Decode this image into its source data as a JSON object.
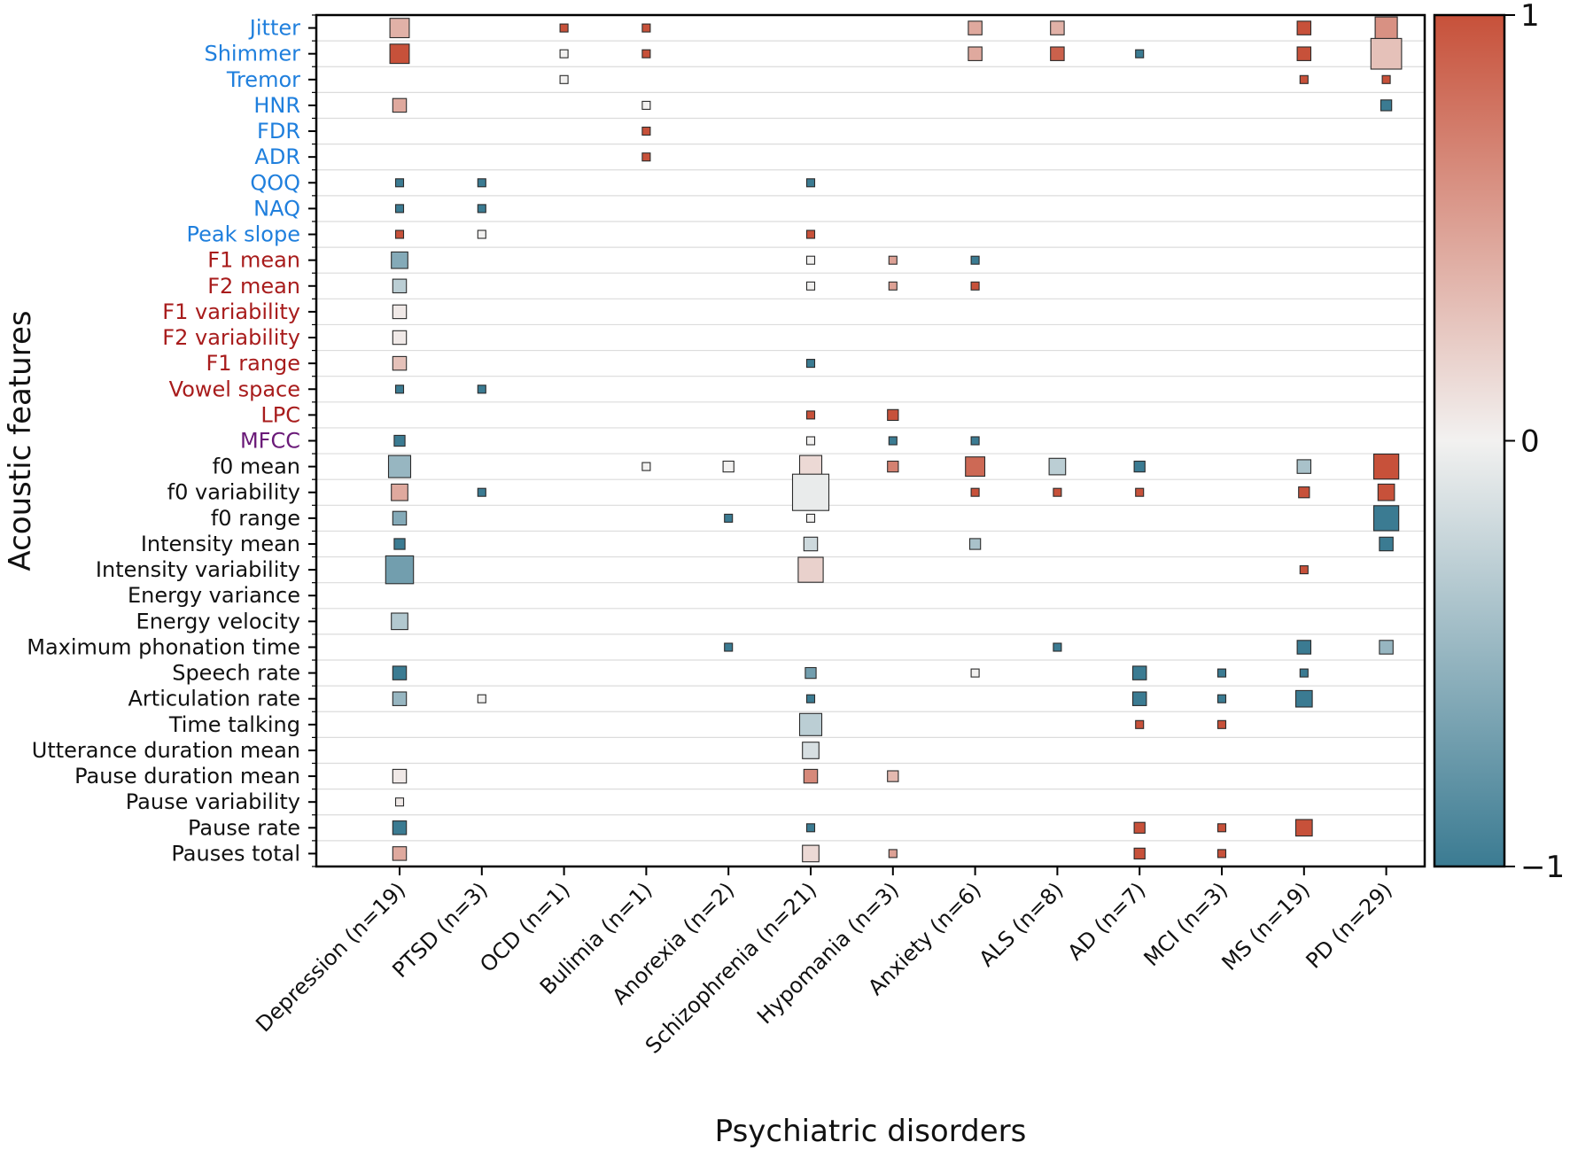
{
  "chart_data": {
    "type": "heatmap",
    "title": "",
    "xlabel": "Psychiatric disorders",
    "ylabel": "Acoustic features",
    "categories": [
      "Depression (n=19)",
      "PTSD (n=3)",
      "OCD (n=1)",
      "Bulimia (n=1)",
      "Anorexia (n=2)",
      "Schizophrenia (n=21)",
      "Hypomania (n=3)",
      "Anxiety (n=6)",
      "ALS (n=8)",
      "AD (n=7)",
      "MCI (n=3)",
      "MS (n=19)",
      "PD (n=29)"
    ],
    "features": [
      {
        "name": "Jitter",
        "group": "source"
      },
      {
        "name": "Shimmer",
        "group": "source"
      },
      {
        "name": "Tremor",
        "group": "source"
      },
      {
        "name": "HNR",
        "group": "source"
      },
      {
        "name": "FDR",
        "group": "source"
      },
      {
        "name": "ADR",
        "group": "source"
      },
      {
        "name": "QOQ",
        "group": "source"
      },
      {
        "name": "NAQ",
        "group": "source"
      },
      {
        "name": "Peak slope",
        "group": "source"
      },
      {
        "name": "F1 mean",
        "group": "filter"
      },
      {
        "name": "F2 mean",
        "group": "filter"
      },
      {
        "name": "F1 variability",
        "group": "filter"
      },
      {
        "name": "F2 variability",
        "group": "filter"
      },
      {
        "name": "F1 range",
        "group": "filter"
      },
      {
        "name": "Vowel space",
        "group": "filter"
      },
      {
        "name": "LPC",
        "group": "filter"
      },
      {
        "name": "MFCC",
        "group": "spectral"
      },
      {
        "name": "f0 mean",
        "group": "prosodic"
      },
      {
        "name": "f0 variability",
        "group": "prosodic"
      },
      {
        "name": "f0 range",
        "group": "prosodic"
      },
      {
        "name": "Intensity mean",
        "group": "prosodic"
      },
      {
        "name": "Intensity variability",
        "group": "prosodic"
      },
      {
        "name": "Energy variance",
        "group": "prosodic"
      },
      {
        "name": "Energy velocity",
        "group": "prosodic"
      },
      {
        "name": "Maximum phonation time",
        "group": "prosodic"
      },
      {
        "name": "Speech rate",
        "group": "prosodic"
      },
      {
        "name": "Articulation rate",
        "group": "prosodic"
      },
      {
        "name": "Time talking ",
        "group": "prosodic"
      },
      {
        "name": "Utterance duration mean",
        "group": "prosodic"
      },
      {
        "name": "Pause duration mean",
        "group": "prosodic"
      },
      {
        "name": "Pause variability",
        "group": "prosodic"
      },
      {
        "name": "Pause rate",
        "group": "prosodic"
      },
      {
        "name": "Pauses total",
        "group": "prosodic"
      }
    ],
    "group_colors": {
      "source": "#1f7fdd",
      "filter": "#a81c1c",
      "spectral": "#6a1a78",
      "prosodic": "#111111"
    },
    "cells": [
      {
        "f": 0,
        "c": 0,
        "value": 0.4,
        "count": 5
      },
      {
        "f": 0,
        "c": 2,
        "value": 1.0,
        "count": 1
      },
      {
        "f": 0,
        "c": 3,
        "value": 1.0,
        "count": 1
      },
      {
        "f": 0,
        "c": 7,
        "value": 0.45,
        "count": 3
      },
      {
        "f": 0,
        "c": 8,
        "value": 0.4,
        "count": 3
      },
      {
        "f": 0,
        "c": 11,
        "value": 1.0,
        "count": 3
      },
      {
        "f": 0,
        "c": 12,
        "value": 0.6,
        "count": 6
      },
      {
        "f": 1,
        "c": 0,
        "value": 1.0,
        "count": 5
      },
      {
        "f": 1,
        "c": 2,
        "value": 0.0,
        "count": 1
      },
      {
        "f": 1,
        "c": 3,
        "value": 1.0,
        "count": 1
      },
      {
        "f": 1,
        "c": 7,
        "value": 0.45,
        "count": 3
      },
      {
        "f": 1,
        "c": 8,
        "value": 0.9,
        "count": 3
      },
      {
        "f": 1,
        "c": 9,
        "value": -1.0,
        "count": 1
      },
      {
        "f": 1,
        "c": 11,
        "value": 1.0,
        "count": 3
      },
      {
        "f": 1,
        "c": 12,
        "value": 0.3,
        "count": 9
      },
      {
        "f": 2,
        "c": 2,
        "value": 0.0,
        "count": 1
      },
      {
        "f": 2,
        "c": 11,
        "value": 1.0,
        "count": 1
      },
      {
        "f": 2,
        "c": 12,
        "value": 1.0,
        "count": 1
      },
      {
        "f": 3,
        "c": 0,
        "value": 0.45,
        "count": 3
      },
      {
        "f": 3,
        "c": 3,
        "value": 0.0,
        "count": 1
      },
      {
        "f": 3,
        "c": 12,
        "value": -1.0,
        "count": 2
      },
      {
        "f": 4,
        "c": 3,
        "value": 1.0,
        "count": 1
      },
      {
        "f": 5,
        "c": 3,
        "value": 1.0,
        "count": 1
      },
      {
        "f": 6,
        "c": 0,
        "value": -1.0,
        "count": 1
      },
      {
        "f": 6,
        "c": 1,
        "value": -1.0,
        "count": 1
      },
      {
        "f": 6,
        "c": 5,
        "value": -1.0,
        "count": 1
      },
      {
        "f": 7,
        "c": 0,
        "value": -1.0,
        "count": 1
      },
      {
        "f": 7,
        "c": 1,
        "value": -1.0,
        "count": 1
      },
      {
        "f": 8,
        "c": 0,
        "value": 1.0,
        "count": 1
      },
      {
        "f": 8,
        "c": 1,
        "value": 0.0,
        "count": 1
      },
      {
        "f": 8,
        "c": 5,
        "value": 1.0,
        "count": 1
      },
      {
        "f": 9,
        "c": 0,
        "value": -0.6,
        "count": 4
      },
      {
        "f": 9,
        "c": 5,
        "value": 0.0,
        "count": 1
      },
      {
        "f": 9,
        "c": 6,
        "value": 0.5,
        "count": 1
      },
      {
        "f": 9,
        "c": 7,
        "value": -1.0,
        "count": 1
      },
      {
        "f": 10,
        "c": 0,
        "value": -0.3,
        "count": 3
      },
      {
        "f": 10,
        "c": 5,
        "value": 0.0,
        "count": 1
      },
      {
        "f": 10,
        "c": 6,
        "value": 0.5,
        "count": 1
      },
      {
        "f": 10,
        "c": 7,
        "value": 1.0,
        "count": 1
      },
      {
        "f": 11,
        "c": 0,
        "value": 0.05,
        "count": 3
      },
      {
        "f": 12,
        "c": 0,
        "value": 0.05,
        "count": 3
      },
      {
        "f": 13,
        "c": 0,
        "value": 0.3,
        "count": 3
      },
      {
        "f": 13,
        "c": 5,
        "value": -1.0,
        "count": 1
      },
      {
        "f": 14,
        "c": 0,
        "value": -1.0,
        "count": 1
      },
      {
        "f": 14,
        "c": 1,
        "value": -1.0,
        "count": 1
      },
      {
        "f": 15,
        "c": 5,
        "value": 1.0,
        "count": 1
      },
      {
        "f": 15,
        "c": 6,
        "value": 1.0,
        "count": 2
      },
      {
        "f": 16,
        "c": 0,
        "value": -1.0,
        "count": 2
      },
      {
        "f": 16,
        "c": 5,
        "value": 0.0,
        "count": 1
      },
      {
        "f": 16,
        "c": 6,
        "value": -1.0,
        "count": 1
      },
      {
        "f": 16,
        "c": 7,
        "value": -1.0,
        "count": 1
      },
      {
        "f": 17,
        "c": 0,
        "value": -0.5,
        "count": 6
      },
      {
        "f": 17,
        "c": 3,
        "value": 0.0,
        "count": 1
      },
      {
        "f": 17,
        "c": 4,
        "value": 0.0,
        "count": 2
      },
      {
        "f": 17,
        "c": 5,
        "value": 0.15,
        "count": 6
      },
      {
        "f": 17,
        "c": 6,
        "value": 0.7,
        "count": 2
      },
      {
        "f": 17,
        "c": 7,
        "value": 0.85,
        "count": 5
      },
      {
        "f": 17,
        "c": 8,
        "value": -0.3,
        "count": 4
      },
      {
        "f": 17,
        "c": 9,
        "value": -1.0,
        "count": 2
      },
      {
        "f": 17,
        "c": 11,
        "value": -0.4,
        "count": 3
      },
      {
        "f": 17,
        "c": 12,
        "value": 1.0,
        "count": 7
      },
      {
        "f": 18,
        "c": 0,
        "value": 0.45,
        "count": 4
      },
      {
        "f": 18,
        "c": 1,
        "value": -1.0,
        "count": 1
      },
      {
        "f": 18,
        "c": 5,
        "value": -0.05,
        "count": 11
      },
      {
        "f": 18,
        "c": 7,
        "value": 1.0,
        "count": 1
      },
      {
        "f": 18,
        "c": 8,
        "value": 1.0,
        "count": 1
      },
      {
        "f": 18,
        "c": 9,
        "value": 1.0,
        "count": 1
      },
      {
        "f": 18,
        "c": 11,
        "value": 1.0,
        "count": 2
      },
      {
        "f": 18,
        "c": 12,
        "value": 1.0,
        "count": 4
      },
      {
        "f": 19,
        "c": 0,
        "value": -0.6,
        "count": 3
      },
      {
        "f": 19,
        "c": 4,
        "value": -1.0,
        "count": 1
      },
      {
        "f": 19,
        "c": 5,
        "value": 0.0,
        "count": 1
      },
      {
        "f": 19,
        "c": 12,
        "value": -1.0,
        "count": 7
      },
      {
        "f": 20,
        "c": 0,
        "value": -1.0,
        "count": 2
      },
      {
        "f": 20,
        "c": 5,
        "value": -0.2,
        "count": 3
      },
      {
        "f": 20,
        "c": 7,
        "value": -0.4,
        "count": 2
      },
      {
        "f": 20,
        "c": 12,
        "value": -1.0,
        "count": 3
      },
      {
        "f": 21,
        "c": 0,
        "value": -0.7,
        "count": 8
      },
      {
        "f": 21,
        "c": 5,
        "value": 0.2,
        "count": 7
      },
      {
        "f": 21,
        "c": 11,
        "value": 1.0,
        "count": 1
      },
      {
        "f": 23,
        "c": 0,
        "value": -0.35,
        "count": 4
      },
      {
        "f": 24,
        "c": 4,
        "value": -1.0,
        "count": 1
      },
      {
        "f": 24,
        "c": 8,
        "value": -1.0,
        "count": 1
      },
      {
        "f": 24,
        "c": 11,
        "value": -1.0,
        "count": 3
      },
      {
        "f": 24,
        "c": 12,
        "value": -0.5,
        "count": 3
      },
      {
        "f": 25,
        "c": 0,
        "value": -1.0,
        "count": 3
      },
      {
        "f": 25,
        "c": 5,
        "value": -0.7,
        "count": 2
      },
      {
        "f": 25,
        "c": 7,
        "value": 0.0,
        "count": 1
      },
      {
        "f": 25,
        "c": 9,
        "value": -1.0,
        "count": 3
      },
      {
        "f": 25,
        "c": 10,
        "value": -1.0,
        "count": 1
      },
      {
        "f": 25,
        "c": 11,
        "value": -1.0,
        "count": 1
      },
      {
        "f": 26,
        "c": 0,
        "value": -0.5,
        "count": 3
      },
      {
        "f": 26,
        "c": 1,
        "value": 0.0,
        "count": 1
      },
      {
        "f": 26,
        "c": 5,
        "value": -1.0,
        "count": 1
      },
      {
        "f": 26,
        "c": 9,
        "value": -1.0,
        "count": 3
      },
      {
        "f": 26,
        "c": 10,
        "value": -1.0,
        "count": 1
      },
      {
        "f": 26,
        "c": 11,
        "value": -1.0,
        "count": 4
      },
      {
        "f": 27,
        "c": 5,
        "value": -0.3,
        "count": 6
      },
      {
        "f": 27,
        "c": 9,
        "value": 1.0,
        "count": 1
      },
      {
        "f": 27,
        "c": 10,
        "value": 1.0,
        "count": 1
      },
      {
        "f": 28,
        "c": 5,
        "value": -0.15,
        "count": 4
      },
      {
        "f": 29,
        "c": 0,
        "value": 0.05,
        "count": 3
      },
      {
        "f": 29,
        "c": 5,
        "value": 0.65,
        "count": 3
      },
      {
        "f": 29,
        "c": 6,
        "value": 0.35,
        "count": 2
      },
      {
        "f": 30,
        "c": 0,
        "value": 0.05,
        "count": 1
      },
      {
        "f": 31,
        "c": 0,
        "value": -1.0,
        "count": 3
      },
      {
        "f": 31,
        "c": 5,
        "value": -1.0,
        "count": 1
      },
      {
        "f": 31,
        "c": 9,
        "value": 1.0,
        "count": 2
      },
      {
        "f": 31,
        "c": 10,
        "value": 1.0,
        "count": 1
      },
      {
        "f": 31,
        "c": 11,
        "value": 1.0,
        "count": 4
      },
      {
        "f": 32,
        "c": 0,
        "value": 0.45,
        "count": 3
      },
      {
        "f": 32,
        "c": 5,
        "value": 0.15,
        "count": 4
      },
      {
        "f": 32,
        "c": 6,
        "value": 0.5,
        "count": 1
      },
      {
        "f": 32,
        "c": 9,
        "value": 1.0,
        "count": 2
      },
      {
        "f": 32,
        "c": 10,
        "value": 1.0,
        "count": 1
      }
    ],
    "colorbar": {
      "range": [
        -1,
        1
      ],
      "ticks": [
        "1",
        "0",
        "−1"
      ],
      "low_color": "#3b7b92",
      "mid_color": "#f2f1f0",
      "high_color": "#c7513a"
    }
  }
}
